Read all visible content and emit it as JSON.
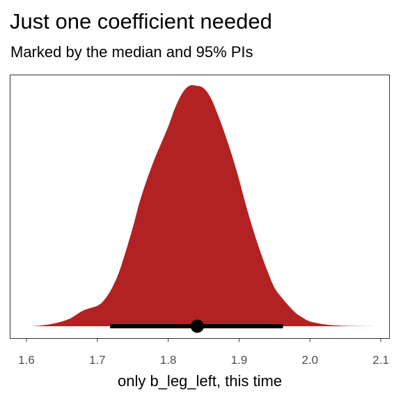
{
  "chart_data": {
    "type": "area",
    "title": "Just one coefficient needed",
    "subtitle": "Marked by the median and 95% PIs",
    "xlabel": "only b_leg_left, this time",
    "ylabel": "",
    "xlim": [
      1.6,
      2.1
    ],
    "x_ticks": [
      "1.6",
      "1.7",
      "1.8",
      "1.9",
      "2.0",
      "2.1"
    ],
    "y_ticks_visible": false,
    "grid": false,
    "legend": "none",
    "density": {
      "x": [
        1.605,
        1.62,
        1.64,
        1.66,
        1.68,
        1.7,
        1.71,
        1.72,
        1.73,
        1.74,
        1.75,
        1.76,
        1.77,
        1.78,
        1.79,
        1.8,
        1.81,
        1.82,
        1.83,
        1.84,
        1.85,
        1.86,
        1.87,
        1.88,
        1.89,
        1.9,
        1.91,
        1.92,
        1.93,
        1.94,
        1.95,
        1.96,
        1.97,
        1.98,
        1.99,
        2.0,
        2.02,
        2.04,
        2.06,
        2.088
      ],
      "y": [
        0.0,
        0.003,
        0.012,
        0.03,
        0.065,
        0.085,
        0.11,
        0.155,
        0.22,
        0.31,
        0.41,
        0.52,
        0.61,
        0.69,
        0.76,
        0.83,
        0.91,
        0.97,
        1.0,
        1.0,
        0.99,
        0.95,
        0.88,
        0.8,
        0.71,
        0.61,
        0.5,
        0.4,
        0.31,
        0.23,
        0.16,
        0.12,
        0.085,
        0.055,
        0.035,
        0.02,
        0.008,
        0.003,
        0.001,
        0.0
      ]
    },
    "median": 1.841,
    "interval_95": [
      1.718,
      1.962
    ],
    "colors": {
      "fill": "#b22222",
      "point_interval": "#000000",
      "panel_border": "#333333",
      "tick_label": "#4d4d4d"
    }
  }
}
